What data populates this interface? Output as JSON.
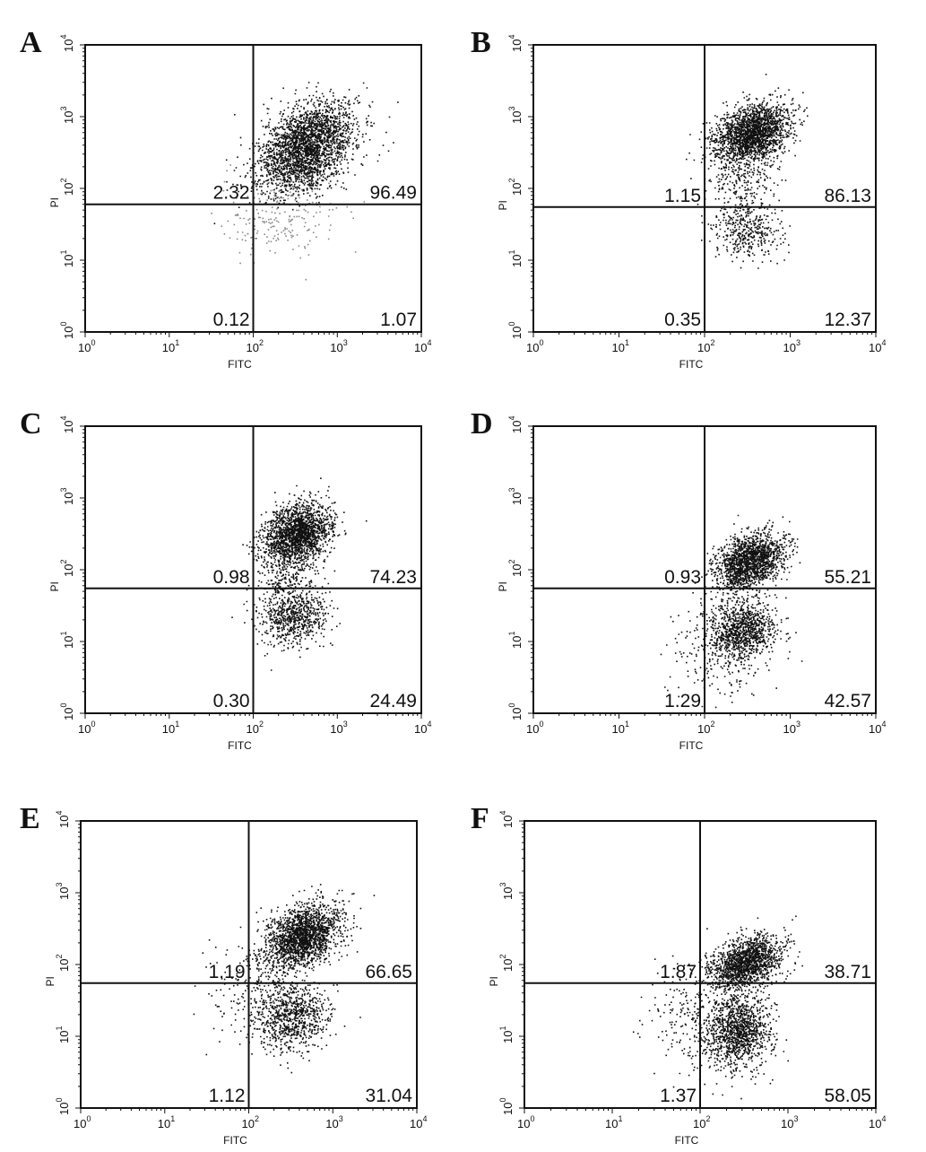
{
  "chart_data": [
    {
      "type": "scatter",
      "panel": "A",
      "xlabel": "FITC",
      "ylabel": "PI",
      "xscale": "log",
      "yscale": "log",
      "xlim": [
        1,
        10000
      ],
      "ylim": [
        1,
        10000
      ],
      "xticks": [
        "10",
        "10",
        "10",
        "10",
        "10"
      ],
      "xtick_exponents": [
        "0",
        "1",
        "2",
        "3",
        "4"
      ],
      "yticks": [
        "10",
        "10",
        "10",
        "10",
        "10"
      ],
      "ytick_exponents": [
        "0",
        "1",
        "2",
        "3",
        "4"
      ],
      "gate": {
        "x": 100,
        "y": 60
      },
      "quadrant_labels": {
        "upper_left": "2.32",
        "upper_right": "96.49",
        "lower_left": "0.12",
        "lower_right": "1.07"
      },
      "clusters": [
        {
          "x": 450,
          "y": 450,
          "sx": 0.28,
          "sy": 0.28,
          "rho": 0.35,
          "count": 2200,
          "tone": "dark"
        },
        {
          "x": 300,
          "y": 150,
          "sx": 0.3,
          "sy": 0.18,
          "rho": 0.2,
          "count": 400,
          "tone": "dark"
        },
        {
          "x": 200,
          "y": 40,
          "sx": 0.35,
          "sy": 0.25,
          "rho": 0.0,
          "count": 220,
          "tone": "light"
        }
      ]
    },
    {
      "type": "scatter",
      "panel": "B",
      "xlabel": "FITC",
      "ylabel": "PI",
      "xscale": "log",
      "yscale": "log",
      "xlim": [
        1,
        10000
      ],
      "ylim": [
        1,
        10000
      ],
      "xticks": [
        "10",
        "10",
        "10",
        "10",
        "10"
      ],
      "xtick_exponents": [
        "0",
        "1",
        "2",
        "3",
        "4"
      ],
      "yticks": [
        "10",
        "10",
        "10",
        "10",
        "10"
      ],
      "ytick_exponents": [
        "0",
        "1",
        "2",
        "3",
        "4"
      ],
      "gate": {
        "x": 100,
        "y": 55
      },
      "quadrant_labels": {
        "upper_left": "1.15",
        "upper_right": "86.13",
        "lower_left": "0.35",
        "lower_right": "12.37"
      },
      "clusters": [
        {
          "x": 350,
          "y": 600,
          "sx": 0.22,
          "sy": 0.2,
          "rho": 0.3,
          "count": 2000,
          "tone": "dark"
        },
        {
          "x": 300,
          "y": 25,
          "sx": 0.2,
          "sy": 0.2,
          "rho": 0.1,
          "count": 380,
          "tone": "dark"
        },
        {
          "x": 260,
          "y": 120,
          "sx": 0.2,
          "sy": 0.25,
          "rho": 0.0,
          "count": 260,
          "tone": "dark"
        }
      ]
    },
    {
      "type": "scatter",
      "panel": "C",
      "xlabel": "FITC",
      "ylabel": "PI",
      "xscale": "log",
      "yscale": "log",
      "xlim": [
        1,
        10000
      ],
      "ylim": [
        1,
        10000
      ],
      "xticks": [
        "10",
        "10",
        "10",
        "10",
        "10"
      ],
      "xtick_exponents": [
        "0",
        "1",
        "2",
        "3",
        "4"
      ],
      "yticks": [
        "10",
        "10",
        "10",
        "10",
        "10"
      ],
      "ytick_exponents": [
        "0",
        "1",
        "2",
        "3",
        "4"
      ],
      "gate": {
        "x": 100,
        "y": 55
      },
      "quadrant_labels": {
        "upper_left": "0.98",
        "upper_right": "74.23",
        "lower_left": "0.30",
        "lower_right": "24.49"
      },
      "clusters": [
        {
          "x": 330,
          "y": 320,
          "sx": 0.2,
          "sy": 0.22,
          "rho": 0.3,
          "count": 1900,
          "tone": "dark"
        },
        {
          "x": 300,
          "y": 22,
          "sx": 0.2,
          "sy": 0.2,
          "rho": 0.1,
          "count": 650,
          "tone": "dark"
        },
        {
          "x": 250,
          "y": 80,
          "sx": 0.2,
          "sy": 0.3,
          "rho": 0.0,
          "count": 280,
          "tone": "dark"
        }
      ]
    },
    {
      "type": "scatter",
      "panel": "D",
      "xlabel": "FITC",
      "ylabel": "PI",
      "xscale": "log",
      "yscale": "log",
      "xlim": [
        1,
        10000
      ],
      "ylim": [
        1,
        10000
      ],
      "xticks": [
        "10",
        "10",
        "10",
        "10",
        "10"
      ],
      "xtick_exponents": [
        "0",
        "1",
        "2",
        "3",
        "4"
      ],
      "yticks": [
        "10",
        "10",
        "10",
        "10",
        "10"
      ],
      "ytick_exponents": [
        "0",
        "1",
        "2",
        "3",
        "4"
      ],
      "gate": {
        "x": 100,
        "y": 55
      },
      "quadrant_labels": {
        "upper_left": "0.93",
        "upper_right": "55.21",
        "lower_left": "1.29",
        "lower_right": "42.57"
      },
      "clusters": [
        {
          "x": 330,
          "y": 130,
          "sx": 0.2,
          "sy": 0.2,
          "rho": 0.35,
          "count": 1700,
          "tone": "dark"
        },
        {
          "x": 280,
          "y": 15,
          "sx": 0.18,
          "sy": 0.2,
          "rho": 0.1,
          "count": 900,
          "tone": "dark"
        },
        {
          "x": 150,
          "y": 8,
          "sx": 0.3,
          "sy": 0.35,
          "rho": 0.0,
          "count": 300,
          "tone": "dark"
        }
      ]
    },
    {
      "type": "scatter",
      "panel": "E",
      "xlabel": "FITC",
      "ylabel": "PI",
      "xscale": "log",
      "yscale": "log",
      "xlim": [
        1,
        10000
      ],
      "ylim": [
        1,
        10000
      ],
      "xticks": [
        "10",
        "10",
        "10",
        "10",
        "10"
      ],
      "xtick_exponents": [
        "0",
        "1",
        "2",
        "3",
        "4"
      ],
      "yticks": [
        "10",
        "10",
        "10",
        "10",
        "10"
      ],
      "ytick_exponents": [
        "0",
        "1",
        "2",
        "3",
        "4"
      ],
      "gate": {
        "x": 100,
        "y": 55
      },
      "quadrant_labels": {
        "upper_left": "1.19",
        "upper_right": "66.65",
        "lower_left": "1.12",
        "lower_right": "31.04"
      },
      "clusters": [
        {
          "x": 430,
          "y": 250,
          "sx": 0.22,
          "sy": 0.22,
          "rho": 0.35,
          "count": 1900,
          "tone": "dark"
        },
        {
          "x": 330,
          "y": 18,
          "sx": 0.22,
          "sy": 0.22,
          "rho": 0.1,
          "count": 750,
          "tone": "dark"
        },
        {
          "x": 140,
          "y": 50,
          "sx": 0.3,
          "sy": 0.35,
          "rho": 0.0,
          "count": 300,
          "tone": "dark"
        }
      ]
    },
    {
      "type": "scatter",
      "panel": "F",
      "xlabel": "FITC",
      "ylabel": "PI",
      "xscale": "log",
      "yscale": "log",
      "xlim": [
        1,
        10000
      ],
      "ylim": [
        1,
        10000
      ],
      "xticks": [
        "10",
        "10",
        "10",
        "10",
        "10"
      ],
      "xtick_exponents": [
        "0",
        "1",
        "2",
        "3",
        "4"
      ],
      "yticks": [
        "10",
        "10",
        "10",
        "10",
        "10"
      ],
      "ytick_exponents": [
        "0",
        "1",
        "2",
        "3",
        "4"
      ],
      "gate": {
        "x": 100,
        "y": 55
      },
      "quadrant_labels": {
        "upper_left": "1.87",
        "upper_right": "38.71",
        "lower_left": "1.37",
        "lower_right": "58.05"
      },
      "clusters": [
        {
          "x": 330,
          "y": 110,
          "sx": 0.2,
          "sy": 0.18,
          "rho": 0.35,
          "count": 1500,
          "tone": "dark"
        },
        {
          "x": 280,
          "y": 12,
          "sx": 0.18,
          "sy": 0.25,
          "rho": 0.1,
          "count": 1100,
          "tone": "dark"
        },
        {
          "x": 110,
          "y": 20,
          "sx": 0.3,
          "sy": 0.4,
          "rho": 0.0,
          "count": 380,
          "tone": "dark"
        }
      ]
    }
  ]
}
